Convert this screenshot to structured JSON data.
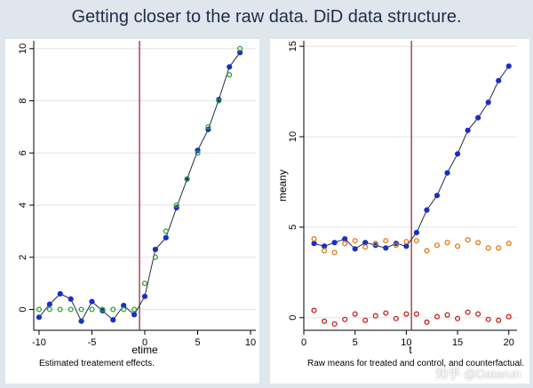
{
  "page": {
    "title": "Getting closer to the raw data.  DiD data structure.",
    "watermark": "知乎 @Datarun"
  },
  "colors": {
    "background": "#dfe6ec",
    "panel": "#ffffff",
    "gridline": "#e3e3e3",
    "event_line": "#8b1c2e",
    "blue_series": "#1a2fc4",
    "green_series": "#2fa02f",
    "orange_series": "#e07a10",
    "red_series": "#c81e1e",
    "line": "#1f2d4a"
  },
  "chart_data": [
    {
      "type": "line",
      "title": "",
      "xlabel": "etime",
      "ylabel": "",
      "note": "Estimated treatement effects.",
      "xlim": [
        -10.5,
        10.5
      ],
      "ylim": [
        -0.8,
        10.3
      ],
      "xticks": [
        -10,
        -5,
        0,
        5,
        10
      ],
      "yticks": [
        0,
        2,
        4,
        6,
        8,
        10
      ],
      "vline_x": -0.5,
      "grid": true,
      "legend": "none",
      "series": [
        {
          "style": "line-filled-circle",
          "color": "#1a2fc4",
          "x": [
            -10,
            -9,
            -8,
            -7,
            -6,
            -5,
            -4,
            -3,
            -2,
            -1,
            0,
            1,
            2,
            3,
            4,
            5,
            6,
            7,
            8,
            9
          ],
          "y": [
            -0.3,
            0.2,
            0.6,
            0.4,
            -0.45,
            0.3,
            -0.05,
            -0.4,
            0.15,
            -0.2,
            0.5,
            2.3,
            2.75,
            3.9,
            5.0,
            6.1,
            6.9,
            8.05,
            9.3,
            9.85
          ]
        },
        {
          "style": "hollow-circle",
          "color": "#2fa02f",
          "x": [
            -10,
            -9,
            -8,
            -7,
            -6,
            -5,
            -4,
            -3,
            -2,
            -1,
            0,
            1,
            2,
            3,
            4,
            5,
            6,
            7,
            8,
            9
          ],
          "y": [
            0,
            0,
            0,
            0,
            0,
            0,
            0,
            0,
            0,
            0,
            1,
            2,
            3,
            4,
            5,
            6,
            7,
            8,
            9,
            10
          ]
        }
      ]
    },
    {
      "type": "line",
      "title": "",
      "xlabel": "t",
      "ylabel": "meany",
      "note": "Raw means for treated and control, and counterfactual.",
      "xlim": [
        0,
        20.8
      ],
      "ylim": [
        -0.7,
        15.3
      ],
      "xticks": [
        0,
        5,
        10,
        15,
        20
      ],
      "yticks": [
        0,
        5,
        10,
        15
      ],
      "vline_x": 10.5,
      "grid": true,
      "legend": "none",
      "series": [
        {
          "style": "line-filled-circle",
          "color": "#1a2fc4",
          "x": [
            1,
            2,
            3,
            4,
            5,
            6,
            7,
            8,
            9,
            10,
            11,
            12,
            13,
            14,
            15,
            16,
            17,
            18,
            19,
            20
          ],
          "y": [
            4.1,
            3.95,
            4.15,
            4.35,
            3.8,
            4.15,
            4.0,
            3.85,
            4.1,
            3.95,
            4.7,
            5.95,
            6.75,
            8.0,
            9.05,
            10.35,
            11.05,
            11.9,
            13.1,
            13.9
          ]
        },
        {
          "style": "hollow-circle",
          "color": "#e07a10",
          "x": [
            1,
            2,
            3,
            4,
            5,
            6,
            7,
            8,
            9,
            10,
            11,
            12,
            13,
            14,
            15,
            16,
            17,
            18,
            19,
            20
          ],
          "y": [
            4.35,
            3.7,
            3.6,
            4.1,
            4.25,
            3.9,
            4.1,
            4.25,
            4.0,
            4.2,
            4.25,
            3.7,
            4.0,
            4.15,
            3.95,
            4.3,
            4.15,
            3.85,
            3.85,
            4.1
          ]
        },
        {
          "style": "hollow-circle",
          "color": "#c81e1e",
          "x": [
            1,
            2,
            3,
            4,
            5,
            6,
            7,
            8,
            9,
            10,
            11,
            12,
            13,
            14,
            15,
            16,
            17,
            18,
            19,
            20
          ],
          "y": [
            0.4,
            -0.2,
            -0.35,
            -0.1,
            0.2,
            -0.15,
            0.1,
            0.25,
            -0.05,
            0.2,
            0.2,
            -0.25,
            0.05,
            0.15,
            -0.05,
            0.3,
            0.2,
            -0.1,
            -0.15,
            0.05
          ]
        }
      ]
    }
  ]
}
